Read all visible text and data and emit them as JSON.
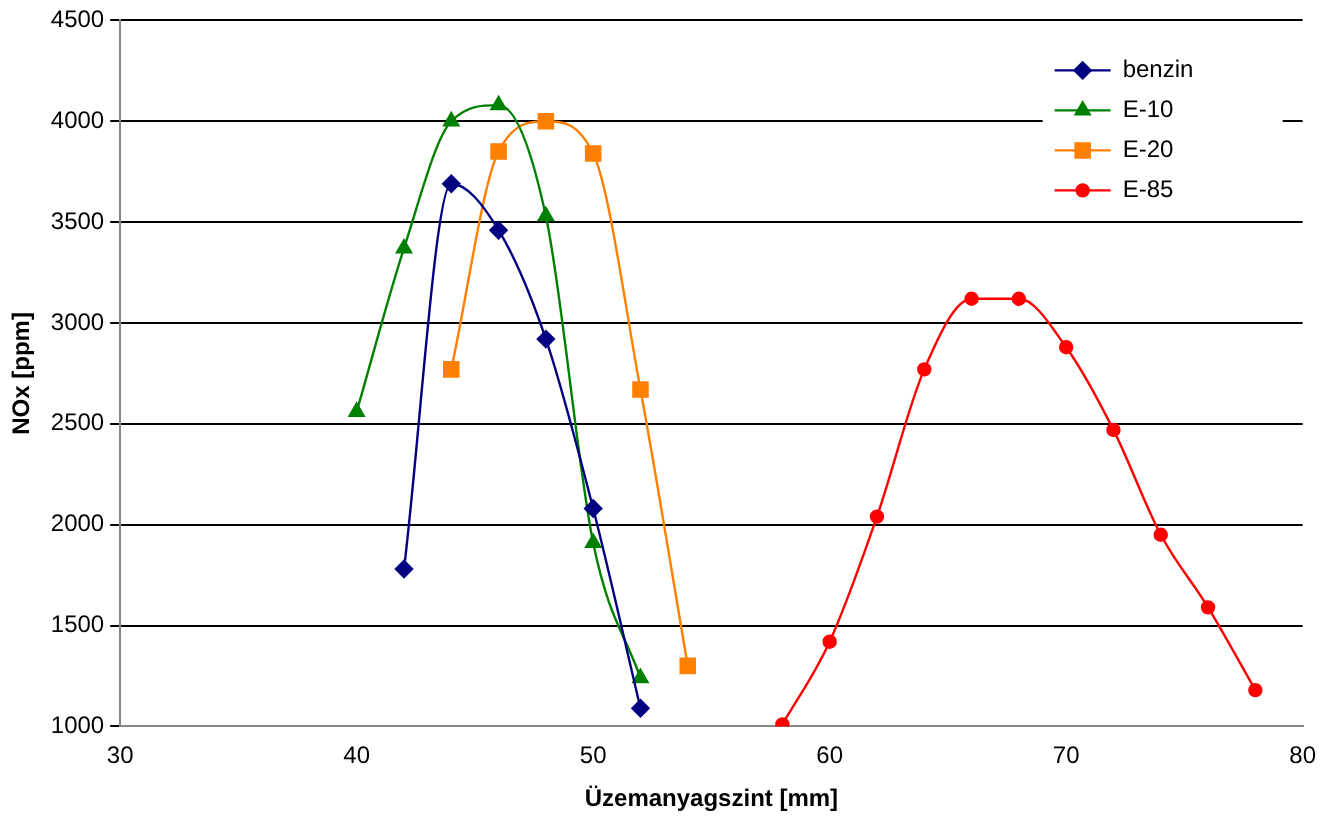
{
  "chart_data": {
    "type": "line",
    "xlabel": "Üzemanyagszint [mm]",
    "ylabel": "NOx [ppm]",
    "xlim": [
      30,
      80
    ],
    "xticks": [
      30,
      40,
      50,
      60,
      70,
      80
    ],
    "ylim": [
      1000,
      4500
    ],
    "yticks": [
      1000,
      1500,
      2000,
      2500,
      3000,
      3500,
      4000,
      4500
    ],
    "grid": "y",
    "legend": "top right",
    "line_style": "solid",
    "series": [
      {
        "name": "benzin",
        "color": "#000080",
        "marker": "diamond",
        "x": [
          42,
          44,
          46,
          48,
          50,
          52
        ],
        "values": [
          1780,
          3690,
          3460,
          2920,
          2080,
          1090
        ]
      },
      {
        "name": "E-10",
        "color": "#008000",
        "marker": "triangle",
        "x": [
          40,
          42,
          44,
          46,
          48,
          50,
          52
        ],
        "values": [
          2560,
          3370,
          4000,
          4080,
          3530,
          1910,
          1240
        ]
      },
      {
        "name": "E-20",
        "color": "#ff8000",
        "marker": "square",
        "x": [
          44,
          46,
          48,
          50,
          52,
          54
        ],
        "values": [
          2770,
          3850,
          4000,
          3840,
          2670,
          1300
        ]
      },
      {
        "name": "E-85",
        "color": "#ff0000",
        "marker": "circle",
        "x": [
          58,
          60,
          62,
          64,
          66,
          68,
          70,
          72,
          74,
          76,
          78
        ],
        "values": [
          1010,
          1420,
          2040,
          2770,
          3120,
          3120,
          2880,
          2470,
          1950,
          1590,
          1180
        ]
      }
    ]
  }
}
